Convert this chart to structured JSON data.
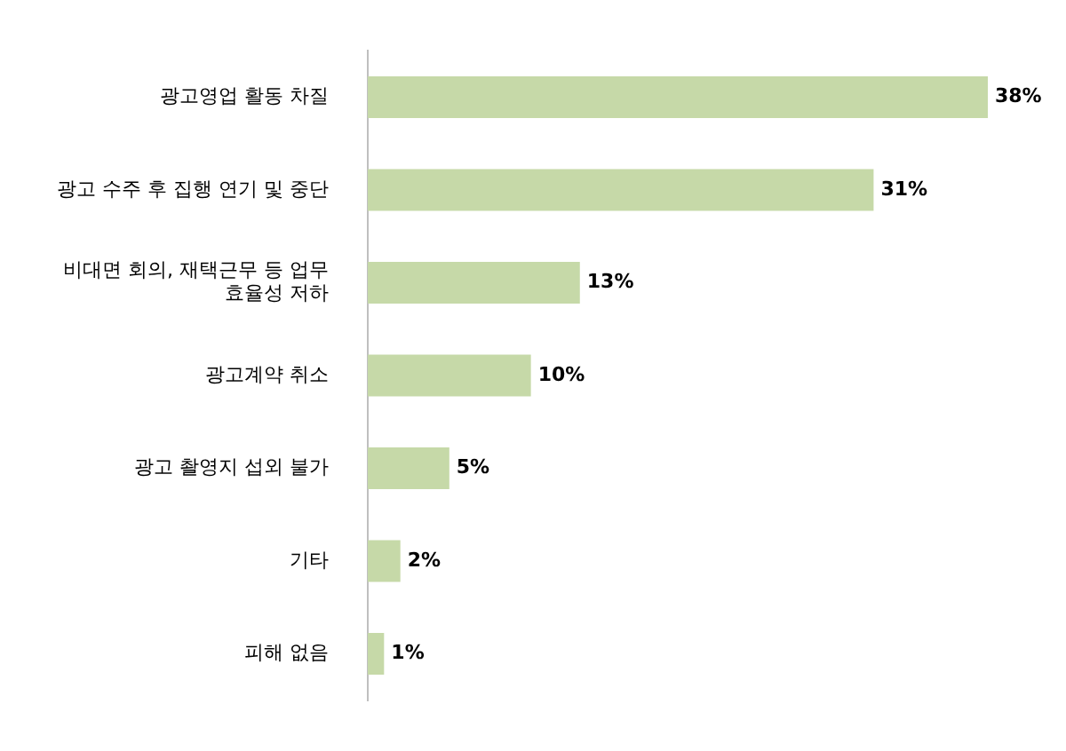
{
  "chart_data": {
    "type": "bar",
    "orientation": "horizontal",
    "categories": [
      "광고영업 활동 차질",
      "광고 수주 후 집행 연기 및 중단",
      "비대면 회의, 재택근무 등 업무 효율성 저하",
      "광고계약 취소",
      "광고 촬영지 섭외 불가",
      "기타",
      "피해 없음"
    ],
    "values": [
      38,
      31,
      13,
      10,
      5,
      2,
      1
    ],
    "color": "#c6d9a8",
    "data_labels": true,
    "value_labels": [
      "38%",
      "31%",
      "13%",
      "10%",
      "5%",
      "2%",
      "1%"
    ],
    "tick_labels": "y"
  }
}
